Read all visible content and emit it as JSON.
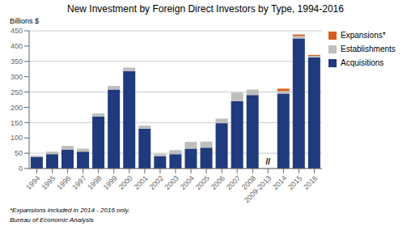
{
  "chart_data": {
    "type": "bar",
    "stacked": true,
    "title": "New Investment by Foreign Direct Investors by Type, 1994-2016",
    "y_label": "Billions $",
    "categories": [
      "1994",
      "1995",
      "1996",
      "1997",
      "1998",
      "1999",
      "2000",
      "2001",
      "2002",
      "2003",
      "2004",
      "2005",
      "2006",
      "2007",
      "2008",
      "2009-2013",
      "2014",
      "2015",
      "2016"
    ],
    "series": [
      {
        "name": "Acquisitions",
        "color": "#1F3A7D",
        "values": [
          38,
          47,
          62,
          55,
          170,
          258,
          318,
          130,
          40,
          47,
          65,
          68,
          148,
          220,
          240,
          0,
          245,
          425,
          363
        ]
      },
      {
        "name": "Establishments",
        "color": "#BEBEBE",
        "values": [
          4,
          8,
          12,
          10,
          10,
          12,
          12,
          10,
          8,
          13,
          22,
          20,
          15,
          28,
          18,
          0,
          8,
          8,
          5
        ]
      },
      {
        "name": "Expansions*",
        "color": "#D45F20",
        "values": [
          0,
          0,
          0,
          0,
          0,
          0,
          0,
          0,
          0,
          0,
          0,
          0,
          0,
          0,
          0,
          0,
          8,
          5,
          3
        ]
      }
    ],
    "ylim": [
      0,
      450
    ],
    "yticks": [
      0,
      50,
      100,
      150,
      200,
      250,
      300,
      350,
      400,
      450
    ],
    "grid": true,
    "legend": "upper right",
    "annotations": [
      {
        "text": "//",
        "x": "2009-2013"
      },
      {
        "text": "*Expansions included in 2014 - 2016 only."
      },
      {
        "text": "Bureau of Economic Analysis"
      }
    ]
  }
}
